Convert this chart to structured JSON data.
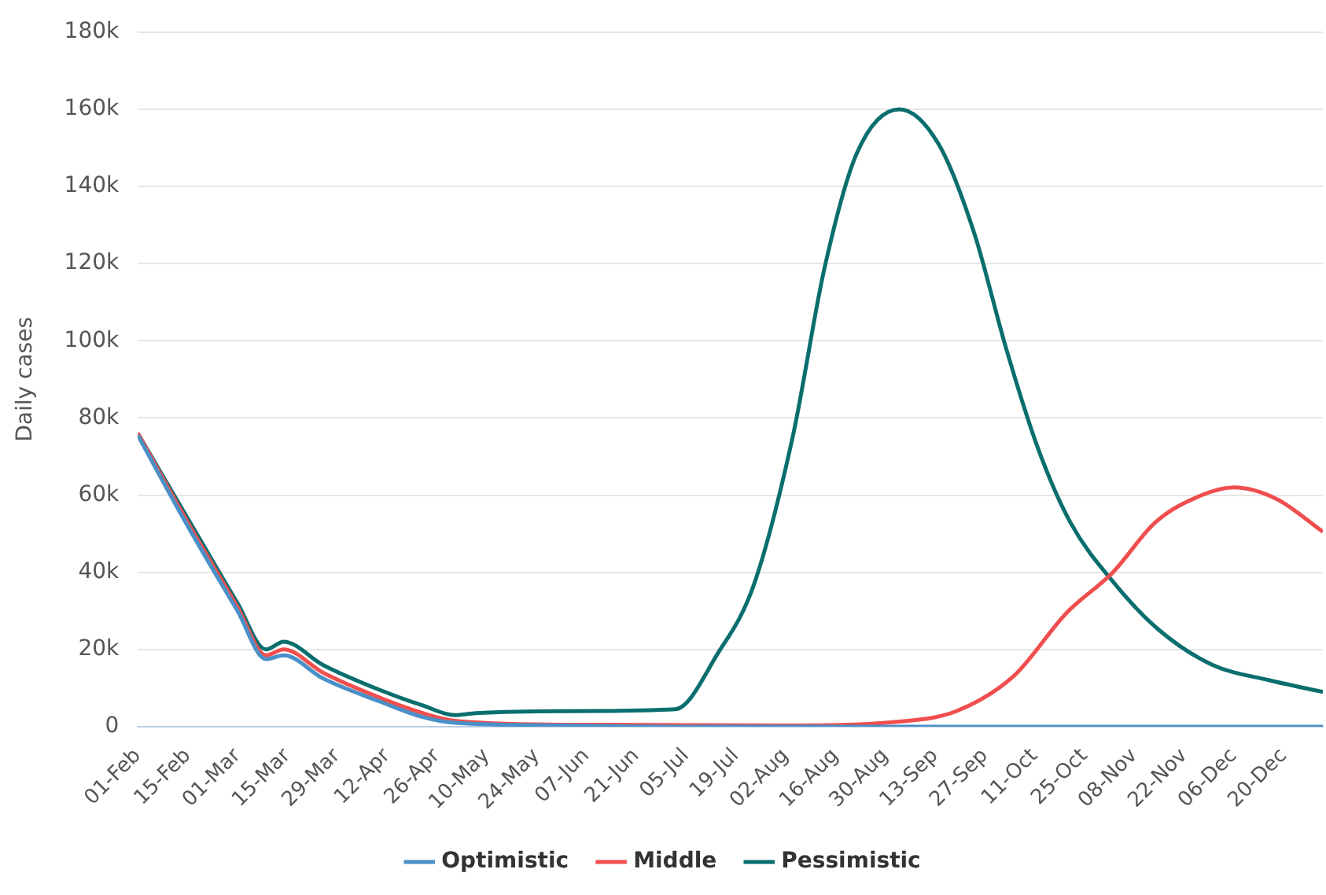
{
  "chart_data": {
    "type": "line",
    "ylabel": "Daily cases",
    "grid": "y",
    "legend": "bottom",
    "xlim": [
      "--02-01",
      "--12-31"
    ],
    "ylim": [
      0,
      180000
    ],
    "yticks": [
      0,
      {
        "value": 20000,
        "label": "20k"
      },
      {
        "value": 40000,
        "label": "40k"
      },
      {
        "value": 60000,
        "label": "60k"
      },
      {
        "value": 80000,
        "label": "80k"
      },
      {
        "value": 100000,
        "label": "100k"
      },
      {
        "value": 120000,
        "label": "120k"
      },
      {
        "value": 140000,
        "label": "140k"
      },
      {
        "value": 160000,
        "label": "160k"
      },
      {
        "value": 180000,
        "label": "180k"
      }
    ],
    "xticks": [
      {
        "value": "--02-01",
        "label": "01-Feb"
      },
      {
        "value": "--02-15",
        "label": "15-Feb"
      },
      {
        "value": "--03-01",
        "label": "01-Mar"
      },
      {
        "value": "--03-15",
        "label": "15-Mar"
      },
      {
        "value": "--03-29",
        "label": "29-Mar"
      },
      {
        "value": "--04-12",
        "label": "12-Apr"
      },
      {
        "value": "--04-26",
        "label": "26-Apr"
      },
      {
        "value": "--05-10",
        "label": "10-May"
      },
      {
        "value": "--05-24",
        "label": "24-May"
      },
      {
        "value": "--06-07",
        "label": "07-Jun"
      },
      {
        "value": "--06-21",
        "label": "21-Jun"
      },
      {
        "value": "--07-05",
        "label": "05-Jul"
      },
      {
        "value": "--07-19",
        "label": "19-Jul"
      },
      {
        "value": "--08-02",
        "label": "02-Aug"
      },
      {
        "value": "--08-16",
        "label": "16-Aug"
      },
      {
        "value": "--08-30",
        "label": "30-Aug"
      },
      {
        "value": "--09-13",
        "label": "13-Sep"
      },
      {
        "value": "--09-27",
        "label": "27-Sep"
      },
      {
        "value": "--10-11",
        "label": "11-Oct"
      },
      {
        "value": "--10-25",
        "label": "25-Oct"
      },
      {
        "value": "--11-08",
        "label": "08-Nov"
      },
      {
        "value": "--11-22",
        "label": "22-Nov"
      },
      {
        "value": "--12-06",
        "label": "06-Dec"
      },
      {
        "value": "--12-20",
        "label": "20-Dec"
      }
    ],
    "series": [
      {
        "name": "Optimistic",
        "color": "#4a90c8",
        "x": [
          "--02-01",
          "--02-15",
          "--03-01",
          "--03-09",
          "--03-14",
          "--03-25",
          "--04-10",
          "--04-22",
          "--05-01",
          "--06-01",
          "--07-01",
          "--12-31"
        ],
        "values": [
          75500,
          52000,
          30000,
          17500,
          18500,
          12500,
          6500,
          2500,
          1000,
          300,
          0,
          0
        ]
      },
      {
        "name": "Middle",
        "color": "#f04e4e",
        "x": [
          "--02-01",
          "--02-15",
          "--03-01",
          "--03-09",
          "--03-14",
          "--03-25",
          "--04-10",
          "--04-22",
          "--05-01",
          "--06-01",
          "--08-01",
          "--09-03",
          "--09-19",
          "--10-05",
          "--10-20",
          "--11-02",
          "--11-14",
          "--11-27",
          "--12-06",
          "--12-18",
          "--12-31"
        ],
        "values": [
          76000,
          53000,
          31000,
          18500,
          20000,
          14000,
          7500,
          3500,
          1500,
          500,
          300,
          1300,
          4000,
          13000,
          29500,
          40000,
          53000,
          60000,
          62000,
          59000,
          50500
        ]
      },
      {
        "name": "Pessimistic",
        "color": "#0a6e6e",
        "x": [
          "--02-01",
          "--02-15",
          "--03-01",
          "--03-09",
          "--03-14",
          "--03-25",
          "--04-10",
          "--04-22",
          "--05-01",
          "--05-07",
          "--06-01",
          "--07-02",
          "--07-14",
          "--07-24",
          "--08-04",
          "--08-13",
          "--08-22",
          "--09-03",
          "--09-14",
          "--09-24",
          "--10-03",
          "--10-12",
          "--10-21",
          "--11-03",
          "--11-15",
          "--11-30",
          "--12-16",
          "--12-31"
        ],
        "values": [
          76000,
          54000,
          32000,
          20000,
          22000,
          16000,
          9500,
          5500,
          3000,
          3500,
          4000,
          4500,
          19000,
          36500,
          75000,
          119000,
          148500,
          160000,
          151000,
          128000,
          98000,
          72000,
          53000,
          36500,
          25000,
          16000,
          12000,
          9000
        ]
      }
    ]
  }
}
